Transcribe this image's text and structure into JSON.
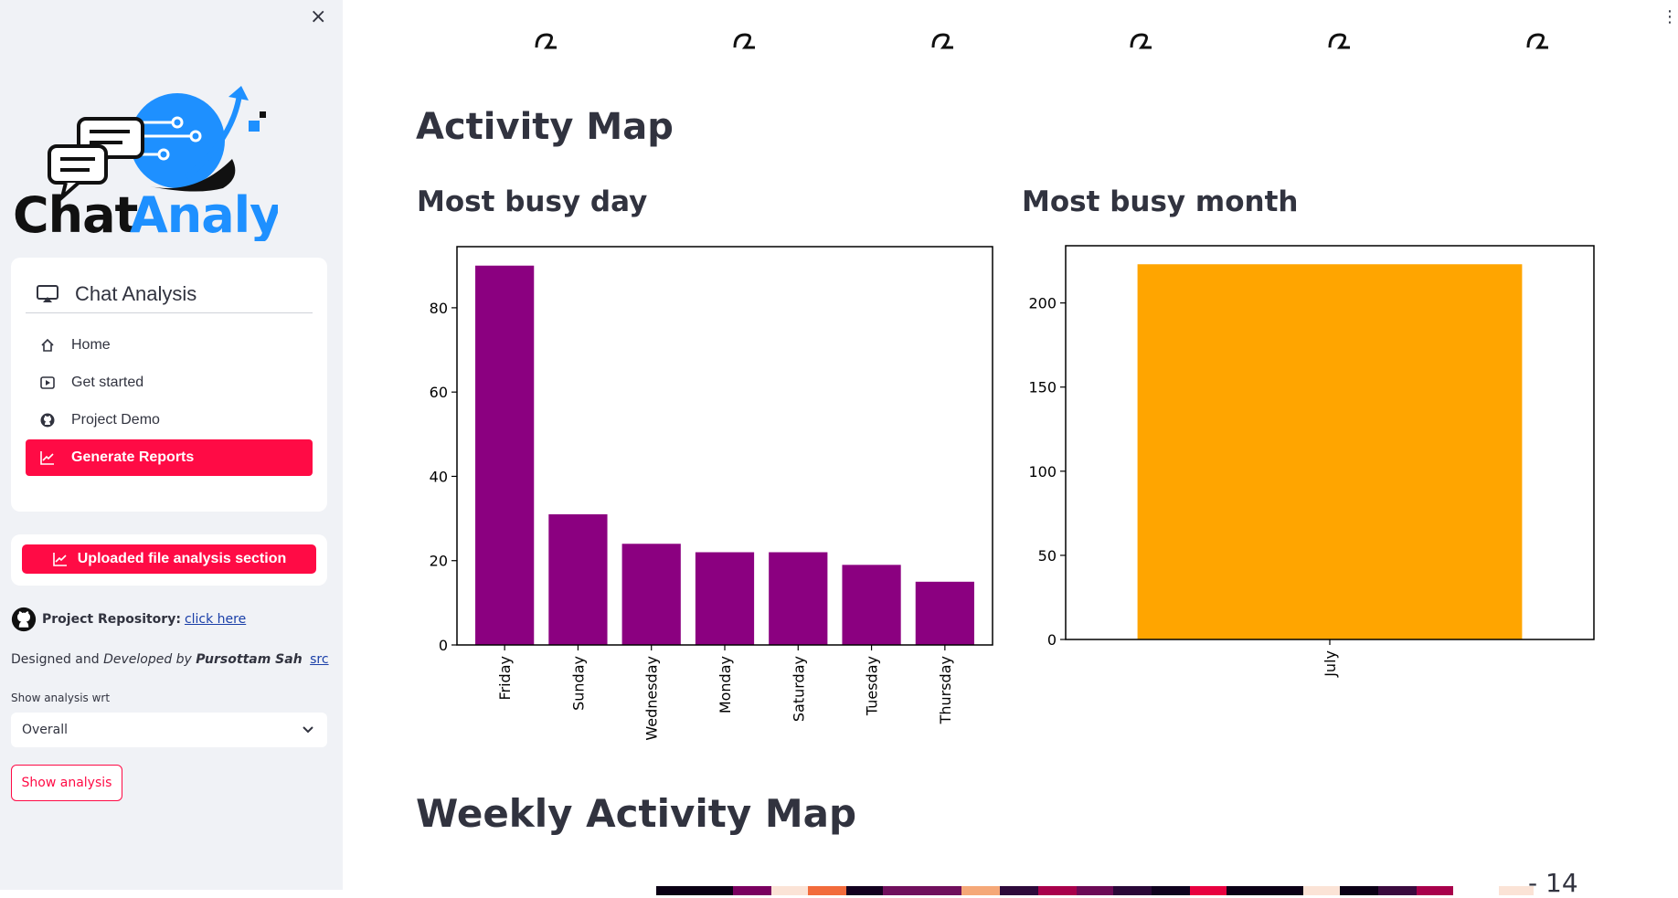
{
  "sidebar": {
    "logo_text_1": "Chat",
    "logo_text_2": "Analysis",
    "menu_title": "Chat Analysis",
    "nav": [
      {
        "label": "Home",
        "icon": "house-icon"
      },
      {
        "label": "Get started",
        "icon": "play-icon"
      },
      {
        "label": "Project Demo",
        "icon": "github-icon"
      },
      {
        "label": "Generate Reports",
        "icon": "chart-icon",
        "active": true
      }
    ],
    "upload_button": "Uploaded file analysis section",
    "repo_label": "Project Repository:",
    "repo_link": "click here",
    "credit_1": "Designed and ",
    "credit_2": "Developed by ",
    "credit_name": "Pursottam Sah",
    "credit_link": "src",
    "select_label": "Show analysis wrt",
    "select_value": "Overall",
    "show_button": "Show analysis"
  },
  "main": {
    "activity_title": "Activity Map",
    "busy_day_title": "Most busy day",
    "busy_month_title": "Most busy month",
    "weekly_title": "Weekly Activity Map",
    "colorbar_tick": "- 14"
  },
  "colors": {
    "accent": "#ff0b45",
    "day_bar": "#8b0080",
    "month_bar": "#ffa500",
    "sidebar_bg": "#f0f2f6"
  },
  "chart_data": [
    {
      "type": "bar",
      "title": "Most busy day",
      "categories": [
        "Friday",
        "Sunday",
        "Wednesday",
        "Monday",
        "Saturday",
        "Tuesday",
        "Thursday"
      ],
      "values": [
        90,
        31,
        24,
        22,
        22,
        19,
        15
      ],
      "yticks": [
        0,
        20,
        40,
        60,
        80
      ],
      "ylim": [
        0,
        94.5
      ]
    },
    {
      "type": "bar",
      "title": "Most busy month",
      "categories": [
        "July"
      ],
      "values": [
        223
      ],
      "yticks": [
        0,
        50,
        100,
        150,
        200
      ],
      "ylim": [
        0,
        234
      ]
    }
  ]
}
